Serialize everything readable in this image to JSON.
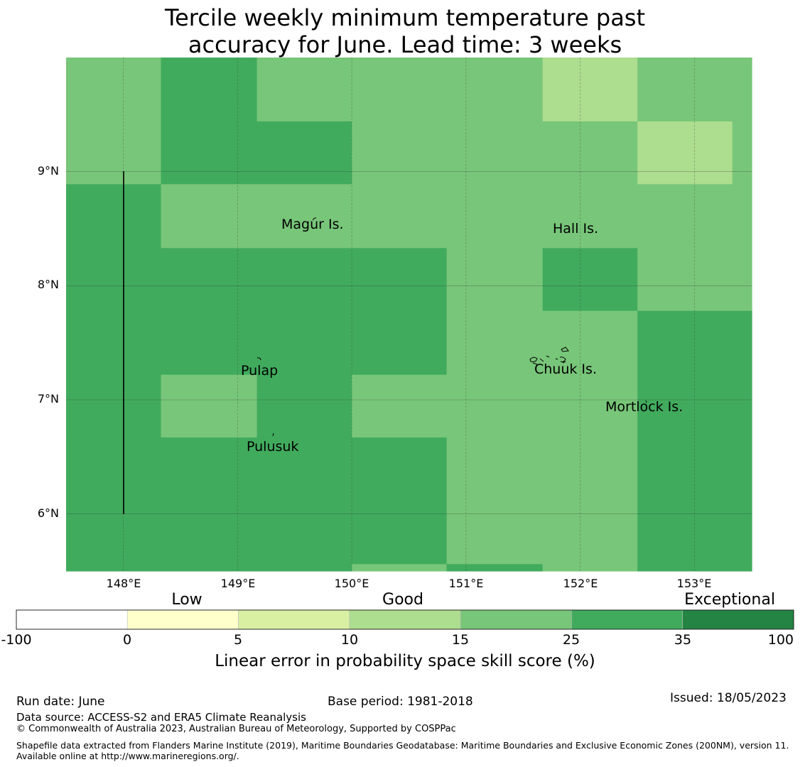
{
  "title": {
    "line1": "Tercile weekly minimum temperature past",
    "line2": "accuracy for June. Lead time: 3 weeks"
  },
  "map": {
    "lon_range": [
      147.5,
      153.5
    ],
    "lat_range": [
      5.5,
      10.0
    ],
    "x_ticks": [
      "148°E",
      "149°E",
      "150°E",
      "151°E",
      "152°E",
      "153°E"
    ],
    "y_ticks": [
      "9°N",
      "8°N",
      "7°N",
      "6°N"
    ],
    "place_labels": [
      "Magur Is.",
      "Hall Is.",
      "Pulap",
      "Chuuk Is.",
      "Mortlock Is.",
      "Pulusuk"
    ],
    "skill_grid": {
      "lon_edges": [
        147.5,
        148.33,
        149.17,
        150.0,
        150.83,
        151.67,
        152.5,
        153.33,
        153.5
      ],
      "lat_edges_top_down": [
        10.0,
        9.44,
        8.89,
        8.33,
        7.78,
        7.22,
        6.67,
        6.11,
        5.56,
        5.5
      ],
      "class_index_rows_top_down": [
        [
          4,
          5,
          4,
          4,
          4,
          3,
          4,
          4
        ],
        [
          4,
          5,
          5,
          4,
          4,
          4,
          3,
          4
        ],
        [
          5,
          4,
          4,
          4,
          4,
          4,
          4,
          4
        ],
        [
          5,
          5,
          5,
          5,
          4,
          5,
          4,
          4
        ],
        [
          5,
          5,
          5,
          5,
          4,
          4,
          5,
          5
        ],
        [
          5,
          4,
          5,
          4,
          4,
          4,
          5,
          5
        ],
        [
          5,
          5,
          5,
          5,
          4,
          4,
          5,
          5
        ],
        [
          5,
          5,
          5,
          5,
          4,
          4,
          5,
          5
        ],
        [
          5,
          5,
          5,
          4,
          5,
          4,
          5,
          5
        ]
      ]
    }
  },
  "colorbar": {
    "ticks": [
      "-100",
      "0",
      "5",
      "10",
      "15",
      "25",
      "35",
      "100"
    ],
    "colors": [
      "#ffffff",
      "#ffffcc",
      "#d9f0a3",
      "#addd8e",
      "#78c679",
      "#41ab5d",
      "#238443"
    ],
    "categories": [
      "Low",
      "Good",
      "Exceptional"
    ],
    "title": "Linear error in probability space skill score (%)"
  },
  "footer": {
    "run_date": "Run date: June",
    "base_period": "Base period: 1981-2018",
    "issued": "Issued: 18/05/2023",
    "data_source": "Data source: ACCESS-S2 and ERA5 Climate Reanalysis",
    "copyright": "© Commonwealth of Australia 2023, Australian Bureau of Meteorology, Supported by COSPPac",
    "shapefile": "Shapefile data extracted from Flanders Marine Institute (2019), Maritime Boundaries Geodatabase: Maritime Boundaries and Exclusive Economic Zones (200NM), version 11. Available online at http://www.marineregions.org/."
  }
}
